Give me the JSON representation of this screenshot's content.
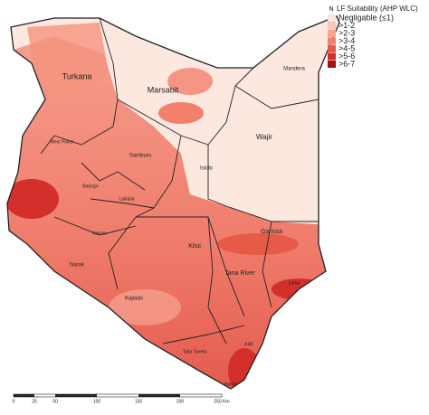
{
  "north_arrow": "N",
  "legend": {
    "title": "LF Suitability (AHP WLC)",
    "items": [
      {
        "label": "Negligable (≤1)",
        "color": "#fde8e0"
      },
      {
        "label": ">1-2",
        "color": "#fbc9bb"
      },
      {
        "label": ">2-3",
        "color": "#f7a593"
      },
      {
        "label": ">3-4",
        "color": "#f2806c"
      },
      {
        "label": ">4-5",
        "color": "#e85a48"
      },
      {
        "label": ">5-6",
        "color": "#d3302c"
      },
      {
        "label": ">6-7",
        "color": "#a50f15"
      }
    ]
  },
  "places": [
    "Turkana",
    "Marsabit",
    "Mandera",
    "Wajir",
    "Isiolo",
    "Samburu",
    "West Pokot",
    "Baringo",
    "Laikipia",
    "Nakuru",
    "Narok",
    "Kajiado",
    "Kitui",
    "Tana River",
    "Garissa",
    "Taita Taveta",
    "Kilifi",
    "Kwale",
    "Lamu"
  ],
  "scale_bar": [
    "0",
    "25",
    "50",
    "100",
    "150",
    "200",
    "250 Km"
  ]
}
